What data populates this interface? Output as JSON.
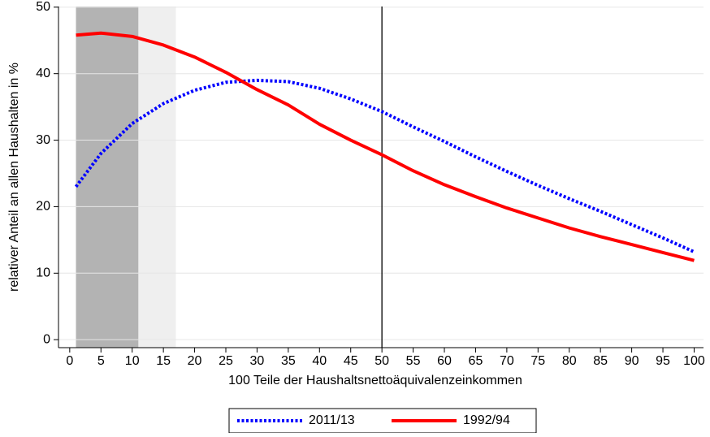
{
  "chart_data": {
    "type": "line",
    "x_label": "100 Teile der Haushaltsnettoäquivalenzeinkommen",
    "y_label": "relativer Anteil an allen Haushalten in %",
    "x": [
      1,
      5,
      10,
      15,
      20,
      25,
      30,
      35,
      40,
      45,
      50,
      55,
      60,
      65,
      70,
      75,
      80,
      85,
      90,
      95,
      100
    ],
    "series": [
      {
        "name": "2011/13",
        "color": "#0000ff",
        "dash": "dotted",
        "values": [
          23,
          28,
          32.5,
          35.5,
          37.5,
          38.7,
          39,
          38.8,
          37.8,
          36.2,
          34.3,
          32,
          29.8,
          27.5,
          25.3,
          23.2,
          21.2,
          19.3,
          17.3,
          15.3,
          13.2
        ]
      },
      {
        "name": "1992/94",
        "color": "#ff0000",
        "dash": "solid",
        "values": [
          45.8,
          46.1,
          45.6,
          44.3,
          42.5,
          40.2,
          37.6,
          35.3,
          32.4,
          30,
          27.8,
          25.4,
          23.3,
          21.5,
          19.8,
          18.3,
          16.8,
          15.5,
          14.3,
          13.1,
          11.9
        ]
      }
    ],
    "xlim": [
      -1.8,
      101.5
    ],
    "ylim": [
      -1.2,
      50.1
    ],
    "xticks": [
      0,
      5,
      10,
      15,
      20,
      25,
      30,
      35,
      40,
      45,
      50,
      55,
      60,
      65,
      70,
      75,
      80,
      85,
      90,
      95,
      100
    ],
    "yticks": [
      0,
      10,
      20,
      30,
      40,
      50
    ],
    "grid": true,
    "shaded_regions": [
      {
        "x0": 1,
        "x1": 11,
        "color": "#b3b3b3"
      },
      {
        "x0": 11,
        "x1": 17,
        "color": "#efefef"
      }
    ],
    "vline": 50,
    "legend": "bottom"
  }
}
